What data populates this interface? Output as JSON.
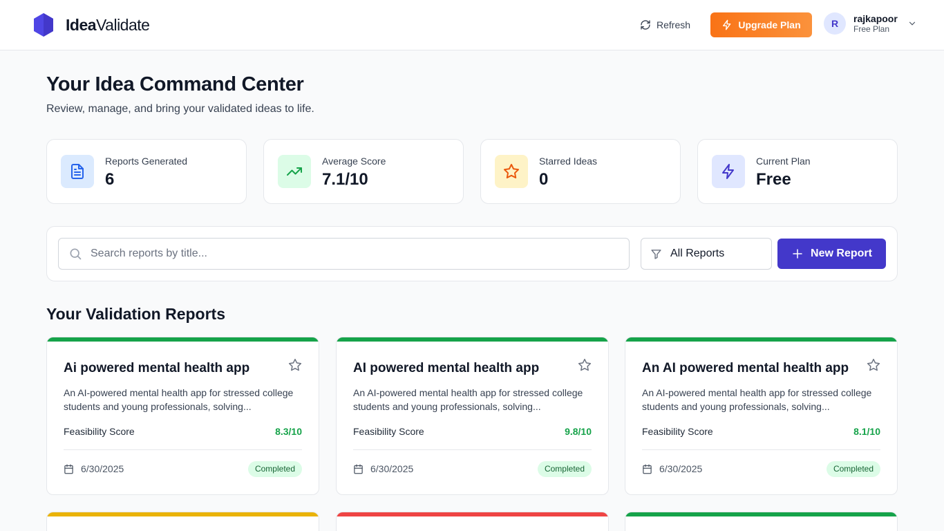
{
  "header": {
    "logo_bold": "Idea",
    "logo_light": "Validate",
    "refresh_label": "Refresh",
    "upgrade_label": "Upgrade Plan",
    "user": {
      "initial": "R",
      "name": "rajkapoor",
      "plan": "Free Plan"
    }
  },
  "hero": {
    "title": "Your Idea Command Center",
    "subtitle": "Review, manage, and bring your validated ideas to life."
  },
  "stats": [
    {
      "label": "Reports Generated",
      "value": "6",
      "icon": "document-icon"
    },
    {
      "label": "Average Score",
      "value": "7.1/10",
      "icon": "trending-up-icon"
    },
    {
      "label": "Starred Ideas",
      "value": "0",
      "icon": "star-icon"
    },
    {
      "label": "Current Plan",
      "value": "Free",
      "icon": "lightning-icon"
    }
  ],
  "toolbar": {
    "search_placeholder": "Search reports by title...",
    "search_value": "",
    "filter_label": "All Reports",
    "new_report_label": "New Report"
  },
  "reports": {
    "section_title": "Your Validation Reports",
    "score_label": "Feasibility Score",
    "items": [
      {
        "title": "Ai powered mental health app",
        "description": "An AI-powered mental health app for stressed college students and young professionals, solving...",
        "score": "8.3/10",
        "date": "6/30/2025",
        "status": "Completed",
        "bar_color": "#16a34a"
      },
      {
        "title": "AI powered mental health app",
        "description": "An AI-powered mental health app for stressed college students and young professionals, solving...",
        "score": "9.8/10",
        "date": "6/30/2025",
        "status": "Completed",
        "bar_color": "#16a34a"
      },
      {
        "title": "An AI powered mental health app",
        "description": "An AI-powered mental health app for stressed college students and young professionals, solving...",
        "score": "8.1/10",
        "date": "6/30/2025",
        "status": "Completed",
        "bar_color": "#16a34a"
      },
      {
        "bar_color": "#eab308"
      },
      {
        "bar_color": "#ef4444"
      },
      {
        "bar_color": "#16a34a"
      }
    ]
  },
  "colors": {
    "brand": "#4338ca",
    "upgrade": "#f97316",
    "success": "#16a34a"
  }
}
